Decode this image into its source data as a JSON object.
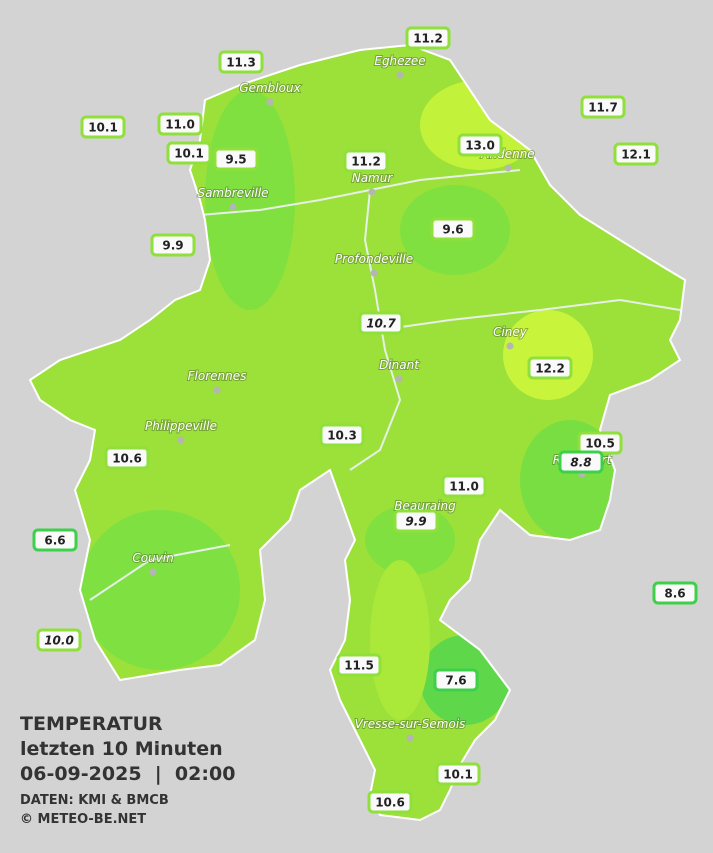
{
  "map": {
    "title": "TEMPERATUR",
    "subtitle": "letzten 10 Minuten",
    "datetime": "06-09-2025  |  02:00",
    "source": "DATEN: KMI & BMCB",
    "copyright": "© METEO-BE.NET",
    "towns": [
      "Gembloux",
      "Eghezee",
      "Andenne",
      "Namur",
      "Sambreville",
      "Profondeville",
      "Ciney",
      "Dinant",
      "Florennes",
      "Philippeville",
      "Rochefort",
      "Beauraing",
      "Couvin",
      "Vresse-sur-Semois"
    ],
    "stations": [
      {
        "label": "11.2"
      },
      {
        "label": "11.3"
      },
      {
        "label": "11.7"
      },
      {
        "label": "10.1"
      },
      {
        "label": "11.0"
      },
      {
        "label": "10.1"
      },
      {
        "label": "9.5"
      },
      {
        "label": "11.2"
      },
      {
        "label": "13.0"
      },
      {
        "label": "12.1"
      },
      {
        "label": "9.6"
      },
      {
        "label": "9.9"
      },
      {
        "label": "10.7",
        "italic": true
      },
      {
        "label": "12.2"
      },
      {
        "label": "10.5"
      },
      {
        "label": "8.8",
        "italic": true
      },
      {
        "label": "10.3"
      },
      {
        "label": "10.6"
      },
      {
        "label": "11.0"
      },
      {
        "label": "9.9",
        "italic": true
      },
      {
        "label": "6.6"
      },
      {
        "label": "8.6"
      },
      {
        "label": "10.0",
        "italic": true
      },
      {
        "label": "11.5"
      },
      {
        "label": "7.6"
      },
      {
        "label": "10.1"
      },
      {
        "label": "10.6"
      }
    ]
  }
}
